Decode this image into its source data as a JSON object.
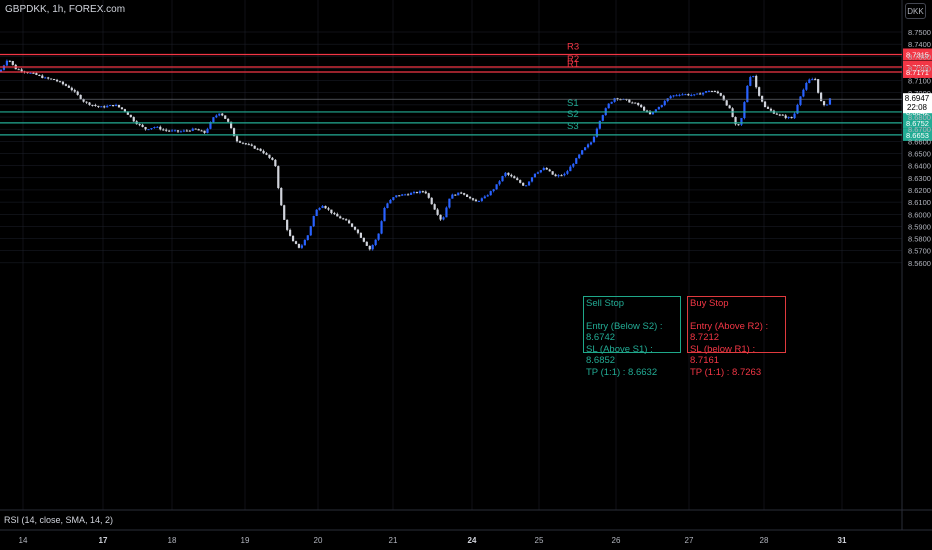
{
  "header": {
    "title": "GBPDKK, 1h, FOREX.com",
    "currency_button": "DKK"
  },
  "price_axis": {
    "ticks": [
      "8.7500",
      "8.7400",
      "8.7300",
      "8.7200",
      "8.7100",
      "8.7000",
      "8.6900",
      "8.6800",
      "8.6700",
      "8.6600",
      "8.6500",
      "8.6400",
      "8.6300",
      "8.6200",
      "8.6100",
      "8.6000",
      "8.5900",
      "8.5800",
      "8.5700",
      "8.5600"
    ]
  },
  "time_axis": {
    "ticks": [
      {
        "label": "14",
        "bold": false
      },
      {
        "label": "17",
        "bold": true
      },
      {
        "label": "18",
        "bold": false
      },
      {
        "label": "19",
        "bold": false
      },
      {
        "label": "20",
        "bold": false
      },
      {
        "label": "21",
        "bold": false
      },
      {
        "label": "24",
        "bold": true
      },
      {
        "label": "25",
        "bold": false
      },
      {
        "label": "26",
        "bold": false
      },
      {
        "label": "27",
        "bold": false
      },
      {
        "label": "28",
        "bold": false
      },
      {
        "label": "31",
        "bold": true
      }
    ]
  },
  "current_price": {
    "value": "8.6947",
    "countdown": "22:08"
  },
  "levels": [
    {
      "name": "R3",
      "price": 8.7315,
      "label": "8.7315",
      "color": "#f23645"
    },
    {
      "name": "R2",
      "price": 8.7212,
      "label": "8.7212",
      "color": "#f23645"
    },
    {
      "name": "R1",
      "price": 8.7171,
      "label": "8.7171",
      "color": "#f23645"
    },
    {
      "name": "S1",
      "price": 8.6842,
      "label": "8.6842",
      "color": "#22ab94"
    },
    {
      "name": "S2",
      "price": 8.6752,
      "label": "8.6752",
      "color": "#22ab94"
    },
    {
      "name": "S3",
      "price": 8.6653,
      "label": "8.6653",
      "color": "#22ab94"
    }
  ],
  "sell_box": {
    "title": "Sell Stop",
    "lines": [
      "Entry (Below S2) : 8.6742",
      "SL (Above S1) :  8.6852",
      "TP (1:1) : 8.6632"
    ]
  },
  "buy_box": {
    "title": "Buy Stop",
    "lines": [
      "Entry (Above R2) : 8.7212",
      "SL (below R1) :  8.7161",
      "TP (1:1) : 8.7263"
    ]
  },
  "indicator": {
    "label": "RSI (14, close, SMA, 14, 2)"
  },
  "colors": {
    "up": "#2962ff",
    "down": "#d1d4dc",
    "support": "#22ab94",
    "resistance": "#f23645",
    "axis_text": "#b2b5be",
    "grid": "#1e222d"
  },
  "chart_data": {
    "type": "candlestick",
    "title": "GBPDKK, 1h, FOREX.com",
    "ylim": [
      8.556,
      8.758
    ],
    "path_points": [
      [
        0,
        8.7175
      ],
      [
        8,
        8.7285
      ],
      [
        15,
        8.72
      ],
      [
        25,
        8.7175
      ],
      [
        35,
        8.715
      ],
      [
        45,
        8.712
      ],
      [
        55,
        8.7105
      ],
      [
        70,
        8.704
      ],
      [
        85,
        8.692
      ],
      [
        100,
        8.688
      ],
      [
        115,
        8.69
      ],
      [
        125,
        8.685
      ],
      [
        135,
        8.676
      ],
      [
        145,
        8.67
      ],
      [
        155,
        8.672
      ],
      [
        165,
        8.669
      ],
      [
        180,
        8.668
      ],
      [
        195,
        8.67
      ],
      [
        205,
        8.667
      ],
      [
        213,
        8.679
      ],
      [
        220,
        8.684
      ],
      [
        228,
        8.676
      ],
      [
        236,
        8.661
      ],
      [
        248,
        8.657
      ],
      [
        262,
        8.652
      ],
      [
        275,
        8.642
      ],
      [
        280,
        8.612
      ],
      [
        285,
        8.592
      ],
      [
        292,
        8.578
      ],
      [
        300,
        8.572
      ],
      [
        308,
        8.583
      ],
      [
        315,
        8.602
      ],
      [
        322,
        8.608
      ],
      [
        335,
        8.599
      ],
      [
        345,
        8.595
      ],
      [
        355,
        8.588
      ],
      [
        362,
        8.58
      ],
      [
        370,
        8.571
      ],
      [
        378,
        8.582
      ],
      [
        385,
        8.607
      ],
      [
        395,
        8.615
      ],
      [
        410,
        8.617
      ],
      [
        425,
        8.619
      ],
      [
        435,
        8.604
      ],
      [
        442,
        8.594
      ],
      [
        450,
        8.615
      ],
      [
        462,
        8.618
      ],
      [
        475,
        8.61
      ],
      [
        485,
        8.614
      ],
      [
        495,
        8.622
      ],
      [
        505,
        8.634
      ],
      [
        515,
        8.629
      ],
      [
        525,
        8.623
      ],
      [
        535,
        8.634
      ],
      [
        545,
        8.638
      ],
      [
        555,
        8.631
      ],
      [
        565,
        8.633
      ],
      [
        575,
        8.644
      ],
      [
        583,
        8.653
      ],
      [
        592,
        8.66
      ],
      [
        600,
        8.678
      ],
      [
        608,
        8.69
      ],
      [
        615,
        8.696
      ],
      [
        625,
        8.694
      ],
      [
        638,
        8.69
      ],
      [
        650,
        8.682
      ],
      [
        660,
        8.689
      ],
      [
        670,
        8.697
      ],
      [
        680,
        8.699
      ],
      [
        695,
        8.698
      ],
      [
        710,
        8.702
      ],
      [
        720,
        8.699
      ],
      [
        730,
        8.686
      ],
      [
        737,
        8.67
      ],
      [
        742,
        8.68
      ],
      [
        747,
        8.705
      ],
      [
        752,
        8.718
      ],
      [
        757,
        8.702
      ],
      [
        765,
        8.688
      ],
      [
        775,
        8.683
      ],
      [
        785,
        8.68
      ],
      [
        793,
        8.679
      ],
      [
        800,
        8.697
      ],
      [
        808,
        8.71
      ],
      [
        815,
        8.712
      ],
      [
        820,
        8.694
      ],
      [
        825,
        8.688
      ],
      [
        831,
        8.697
      ]
    ]
  }
}
